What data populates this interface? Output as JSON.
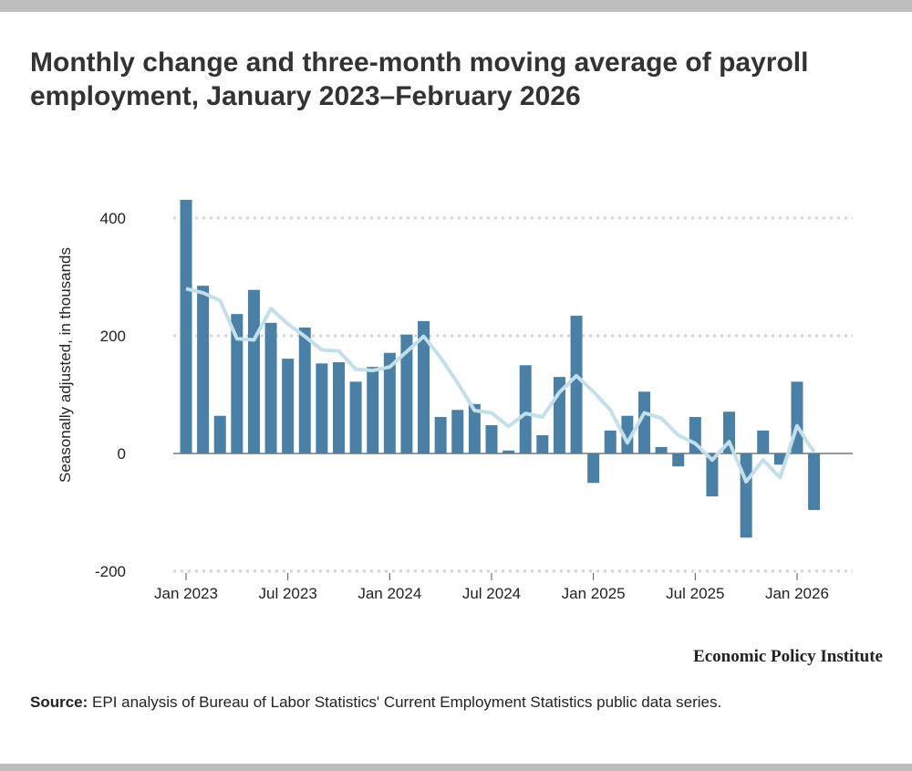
{
  "chart_data": {
    "type": "bar",
    "title": "Monthly change and three-month moving average of payroll employment, January 2023–February 2026",
    "ylabel": "Seasonally adjusted, in thousands",
    "xlabel": "",
    "ylim": [
      -200,
      400
    ],
    "yticks": [
      "400",
      "200",
      "0",
      "-200"
    ],
    "ytick_values": [
      400,
      200,
      0,
      -200
    ],
    "xticks": [
      "Jan 2023",
      "Jul 2023",
      "Jan 2024",
      "Jul 2024",
      "Jan 2025",
      "Jul 2025",
      "Jan 2026"
    ],
    "xtick_index": [
      0,
      6,
      12,
      18,
      24,
      30,
      36
    ],
    "grid": true,
    "categories": [
      "2023-01",
      "2023-02",
      "2023-03",
      "2023-04",
      "2023-05",
      "2023-06",
      "2023-07",
      "2023-08",
      "2023-09",
      "2023-10",
      "2023-11",
      "2023-12",
      "2024-01",
      "2024-02",
      "2024-03",
      "2024-04",
      "2024-05",
      "2024-06",
      "2024-07",
      "2024-08",
      "2024-09",
      "2024-10",
      "2024-11",
      "2024-12",
      "2025-01",
      "2025-02",
      "2025-03",
      "2025-04",
      "2025-05",
      "2025-06",
      "2025-07",
      "2025-08",
      "2025-09",
      "2025-10",
      "2025-11",
      "2025-12",
      "2026-01",
      "2026-02"
    ],
    "series": [
      {
        "type": "bar",
        "color": "#4a7fa6",
        "values": [
          431,
          285,
          64,
          237,
          278,
          222,
          161,
          214,
          153,
          155,
          122,
          147,
          171,
          202,
          225,
          62,
          74,
          84,
          48,
          5,
          150,
          31,
          130,
          234,
          -50,
          39,
          64,
          105,
          11,
          -22,
          62,
          -73,
          71,
          -143,
          39,
          -19,
          122,
          -96
        ]
      },
      {
        "type": "line",
        "color": "#c3dfeb",
        "values": [
          280,
          273,
          260,
          195,
          193,
          246,
          220,
          199,
          176,
          174,
          143,
          141,
          147,
          173,
          199,
          163,
          120,
          73,
          69,
          46,
          68,
          62,
          104,
          132,
          105,
          74,
          18,
          69,
          60,
          31,
          17,
          -11,
          20,
          -48,
          -11,
          -41,
          47,
          2
        ]
      }
    ]
  },
  "brand": "Economic Policy Institute",
  "source": {
    "label": "Source:",
    "text": " EPI analysis of Bureau of Labor Statistics' Current Employment Statistics public data series."
  }
}
